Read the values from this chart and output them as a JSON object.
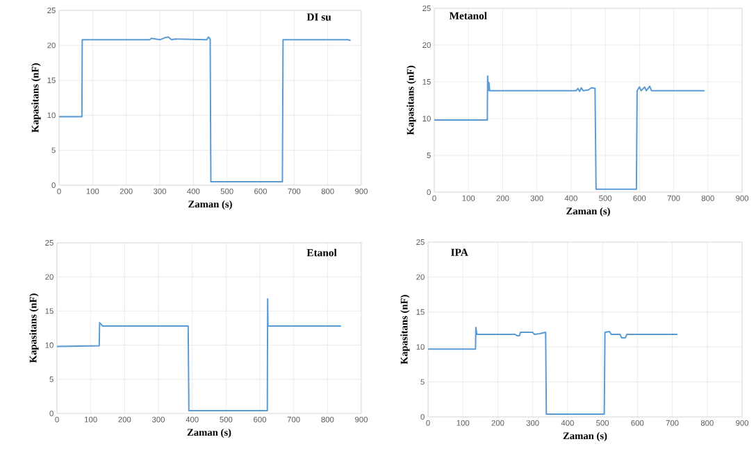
{
  "chart_data": [
    {
      "type": "line",
      "title": "DI su",
      "xlabel": "Zaman (s)",
      "ylabel": "Kapasitans (nF)",
      "xlim": [
        0,
        900
      ],
      "ylim": [
        0,
        25
      ],
      "xticks": [
        0,
        100,
        200,
        300,
        400,
        500,
        600,
        700,
        800,
        900
      ],
      "yticks": [
        0,
        5,
        10,
        15,
        20,
        25
      ],
      "grid": true,
      "series": [
        {
          "color": "#5b9bd5",
          "x": [
            0,
            68,
            69,
            270,
            275,
            300,
            315,
            325,
            335,
            345,
            440,
            445,
            450,
            452,
            665,
            667,
            860,
            868
          ],
          "values": [
            9.8,
            9.8,
            20.8,
            20.8,
            21.0,
            20.8,
            21.1,
            21.2,
            20.8,
            20.9,
            20.8,
            21.2,
            20.9,
            0.5,
            0.5,
            20.8,
            20.8,
            20.7
          ]
        }
      ]
    },
    {
      "type": "line",
      "title": "Metanol",
      "xlabel": "Zaman (s)",
      "ylabel": "Kapasitans (nF)",
      "xlim": [
        0,
        900
      ],
      "ylim": [
        0,
        25
      ],
      "xticks": [
        0,
        100,
        200,
        300,
        400,
        500,
        600,
        700,
        800,
        900
      ],
      "yticks": [
        0,
        5,
        10,
        15,
        20,
        25
      ],
      "grid": true,
      "series": [
        {
          "color": "#5b9bd5",
          "x": [
            0,
            155,
            156,
            158,
            160,
            162,
            415,
            420,
            425,
            430,
            435,
            450,
            460,
            470,
            473,
            591,
            593,
            600,
            605,
            615,
            620,
            630,
            635,
            790
          ],
          "values": [
            9.8,
            9.8,
            15.8,
            13.8,
            14.9,
            13.8,
            13.8,
            14.1,
            13.7,
            14.2,
            13.8,
            13.9,
            14.2,
            14.1,
            0.4,
            0.4,
            13.8,
            14.3,
            13.8,
            14.3,
            13.8,
            14.4,
            13.8,
            13.8
          ]
        }
      ]
    },
    {
      "type": "line",
      "title": "Etanol",
      "xlabel": "Zaman (s)",
      "ylabel": "Kapasitans (nF)",
      "xlim": [
        0,
        900
      ],
      "ylim": [
        0,
        25
      ],
      "xticks": [
        0,
        100,
        200,
        300,
        400,
        500,
        600,
        700,
        800,
        900
      ],
      "yticks": [
        0,
        5,
        10,
        15,
        20,
        25
      ],
      "grid": true,
      "series": [
        {
          "color": "#5b9bd5",
          "x": [
            0,
            125,
            126,
            130,
            135,
            388,
            390,
            622,
            623,
            624,
            840
          ],
          "values": [
            9.8,
            9.9,
            13.3,
            13.1,
            12.8,
            12.8,
            0.4,
            0.4,
            16.8,
            12.8,
            12.8
          ]
        }
      ]
    },
    {
      "type": "line",
      "title": "IPA",
      "xlabel": "Zaman (s)",
      "ylabel": "Kapasitans (nF)",
      "xlim": [
        0,
        900
      ],
      "ylim": [
        0,
        25
      ],
      "xticks": [
        0,
        100,
        200,
        300,
        400,
        500,
        600,
        700,
        800,
        900
      ],
      "yticks": [
        0,
        5,
        10,
        15,
        20,
        25
      ],
      "grid": true,
      "series": [
        {
          "color": "#5b9bd5",
          "x": [
            0,
            136,
            137,
            140,
            250,
            255,
            262,
            265,
            300,
            305,
            320,
            337,
            339,
            505,
            507,
            520,
            525,
            550,
            555,
            565,
            570,
            715
          ],
          "values": [
            9.7,
            9.7,
            12.8,
            11.8,
            11.8,
            11.6,
            11.6,
            12.1,
            12.1,
            11.8,
            11.9,
            12.1,
            0.4,
            0.4,
            12.1,
            12.2,
            11.8,
            11.8,
            11.3,
            11.3,
            11.8,
            11.8
          ]
        }
      ]
    }
  ]
}
